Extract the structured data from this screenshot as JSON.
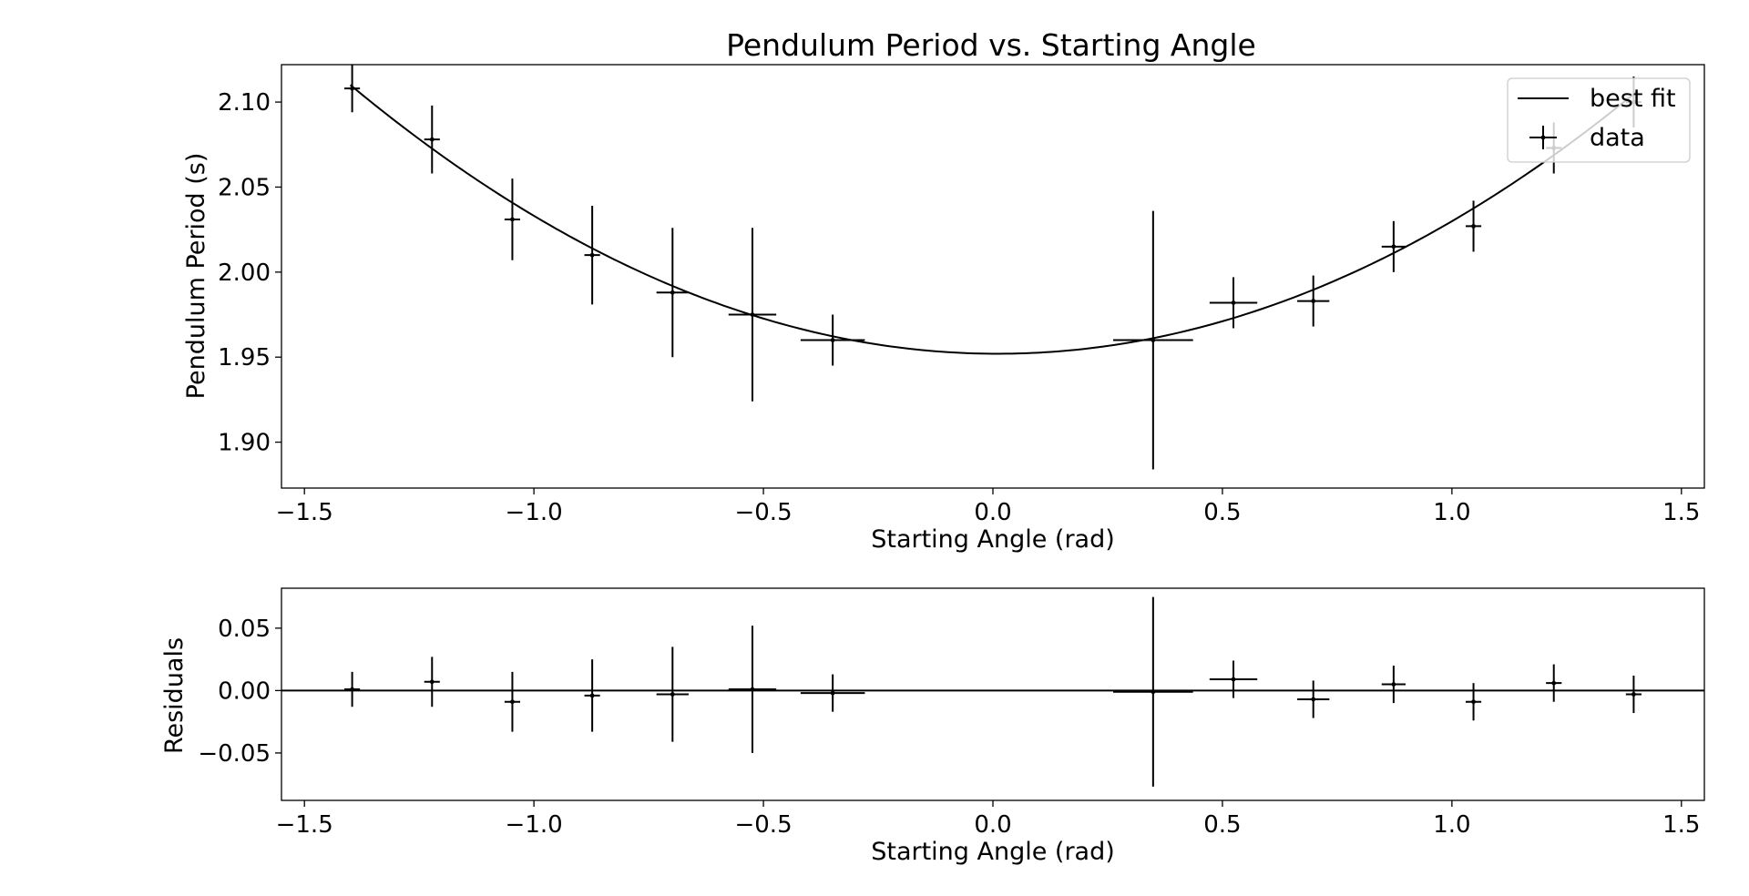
{
  "chart_data": [
    {
      "type": "scatter",
      "title": "Pendulum Period vs. Starting Angle",
      "xlabel": "Starting Angle (rad)",
      "ylabel": "Pendulum Period (s)",
      "xlim": [
        -1.55,
        1.55
      ],
      "ylim": [
        1.873,
        2.122
      ],
      "grid": false,
      "legend": {
        "placement": "upper-right",
        "entries": [
          "best fit",
          "data"
        ]
      },
      "x_ticks": [
        -1.5,
        -1.0,
        -0.5,
        0.0,
        0.5,
        1.0,
        1.5
      ],
      "x_tick_labels": [
        "−1.5",
        "−1.0",
        "−0.5",
        "0.0",
        "0.5",
        "1.0",
        "1.5"
      ],
      "y_ticks": [
        1.9,
        1.95,
        2.0,
        2.05,
        2.1
      ],
      "y_tick_labels": [
        "1.90",
        "1.95",
        "2.00",
        "2.05",
        "2.10"
      ],
      "fit": {
        "name": "best fit",
        "vertex_x": 0.01,
        "vertex_y": 1.952,
        "curvature": 0.0795,
        "x_range": [
          -1.4,
          1.4
        ]
      },
      "series": [
        {
          "name": "data",
          "x": [
            -1.396,
            -1.222,
            -1.047,
            -0.873,
            -0.698,
            -0.524,
            -0.349,
            0.349,
            0.524,
            0.698,
            0.873,
            1.047,
            1.222,
            1.396
          ],
          "y": [
            2.108,
            2.078,
            2.031,
            2.01,
            1.988,
            1.975,
            1.96,
            1.96,
            1.982,
            1.983,
            2.015,
            2.027,
            2.073,
            2.1
          ],
          "xerr": [
            0.017,
            0.017,
            0.017,
            0.017,
            0.035,
            0.052,
            0.07,
            0.087,
            0.052,
            0.035,
            0.026,
            0.017,
            0.017,
            0.017
          ],
          "yerr": [
            0.014,
            0.02,
            0.024,
            0.029,
            0.038,
            0.051,
            0.015,
            0.076,
            0.015,
            0.015,
            0.015,
            0.015,
            0.015,
            0.015
          ]
        }
      ]
    },
    {
      "type": "scatter",
      "title": "",
      "xlabel": "Starting Angle (rad)",
      "ylabel": "Residuals",
      "xlim": [
        -1.55,
        1.55
      ],
      "ylim": [
        -0.088,
        0.082
      ],
      "grid": false,
      "zero_line": true,
      "x_ticks": [
        -1.5,
        -1.0,
        -0.5,
        0.0,
        0.5,
        1.0,
        1.5
      ],
      "x_tick_labels": [
        "−1.5",
        "−1.0",
        "−0.5",
        "0.0",
        "0.5",
        "1.0",
        "1.5"
      ],
      "y_ticks": [
        -0.05,
        0.0,
        0.05
      ],
      "y_tick_labels": [
        "−0.05",
        "0.00",
        "0.05"
      ],
      "series": [
        {
          "x": [
            -1.396,
            -1.222,
            -1.047,
            -0.873,
            -0.698,
            -0.524,
            -0.349,
            0.349,
            0.524,
            0.698,
            0.873,
            1.047,
            1.222,
            1.396
          ],
          "y": [
            0.001,
            0.007,
            -0.009,
            -0.004,
            -0.003,
            0.001,
            -0.002,
            -0.001,
            0.009,
            -0.007,
            0.005,
            -0.009,
            0.006,
            -0.003
          ],
          "xerr": [
            0.017,
            0.017,
            0.017,
            0.017,
            0.035,
            0.052,
            0.07,
            0.087,
            0.052,
            0.035,
            0.026,
            0.017,
            0.017,
            0.017
          ],
          "yerr": [
            0.014,
            0.02,
            0.024,
            0.029,
            0.038,
            0.051,
            0.015,
            0.076,
            0.015,
            0.015,
            0.015,
            0.015,
            0.015,
            0.015
          ]
        }
      ]
    }
  ]
}
